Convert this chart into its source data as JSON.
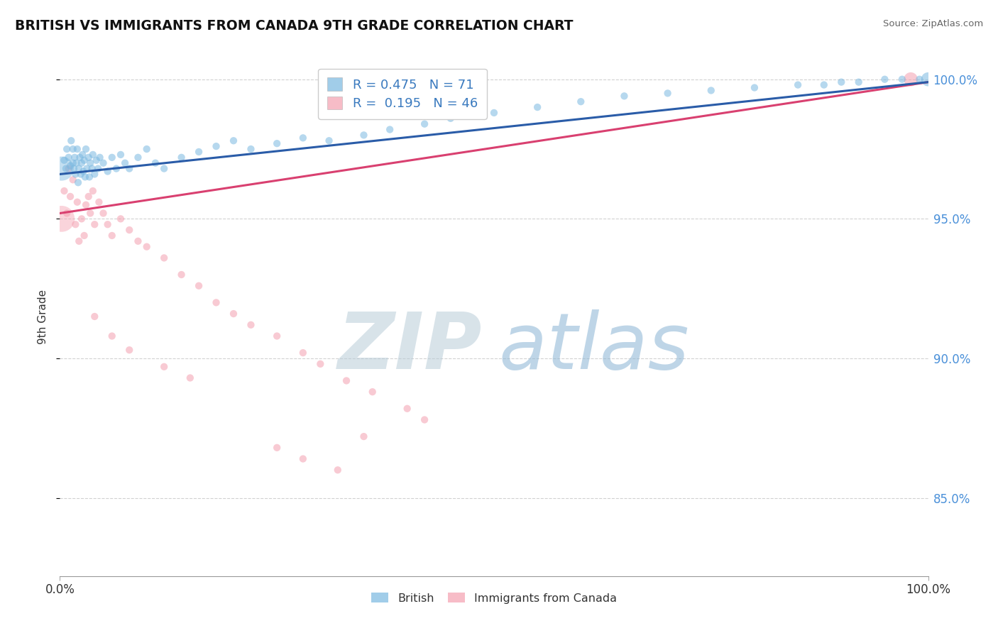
{
  "title": "BRITISH VS IMMIGRANTS FROM CANADA 9TH GRADE CORRELATION CHART",
  "source_text": "Source: ZipAtlas.com",
  "ylabel": "9th Grade",
  "xlim": [
    0.0,
    1.0
  ],
  "ylim": [
    0.822,
    1.008
  ],
  "yticks": [
    0.85,
    0.9,
    0.95,
    1.0
  ],
  "ytick_labels": [
    "85.0%",
    "90.0%",
    "95.0%",
    "100.0%"
  ],
  "british_color": "#7ab8e0",
  "immigrant_color": "#f4a0b0",
  "british_line_color": "#2a5ca8",
  "immigrant_line_color": "#d94070",
  "grid_color": "#cccccc",
  "watermark_zip": "ZIP",
  "watermark_atlas": "atlas",
  "legend_line1": "R = 0.475   N = 71",
  "legend_line2": "R =  0.195   N = 46",
  "british_scatter_x": [
    0.005,
    0.007,
    0.008,
    0.01,
    0.012,
    0.013,
    0.015,
    0.015,
    0.016,
    0.017,
    0.018,
    0.019,
    0.02,
    0.021,
    0.022,
    0.023,
    0.024,
    0.025,
    0.026,
    0.027,
    0.028,
    0.029,
    0.03,
    0.031,
    0.033,
    0.034,
    0.035,
    0.037,
    0.038,
    0.04,
    0.042,
    0.044,
    0.046,
    0.05,
    0.055,
    0.06,
    0.065,
    0.07,
    0.075,
    0.08,
    0.09,
    0.1,
    0.11,
    0.12,
    0.14,
    0.16,
    0.18,
    0.2,
    0.22,
    0.25,
    0.28,
    0.31,
    0.35,
    0.38,
    0.42,
    0.45,
    0.5,
    0.55,
    0.6,
    0.65,
    0.7,
    0.75,
    0.8,
    0.85,
    0.88,
    0.9,
    0.92,
    0.95,
    0.97,
    0.99,
    1.0
  ],
  "british_scatter_y": [
    0.971,
    0.968,
    0.975,
    0.972,
    0.969,
    0.978,
    0.97,
    0.975,
    0.968,
    0.972,
    0.966,
    0.97,
    0.975,
    0.963,
    0.968,
    0.972,
    0.966,
    0.97,
    0.973,
    0.967,
    0.971,
    0.965,
    0.975,
    0.968,
    0.972,
    0.965,
    0.97,
    0.968,
    0.973,
    0.966,
    0.971,
    0.968,
    0.972,
    0.97,
    0.967,
    0.972,
    0.968,
    0.973,
    0.97,
    0.968,
    0.972,
    0.975,
    0.97,
    0.968,
    0.972,
    0.974,
    0.976,
    0.978,
    0.975,
    0.977,
    0.979,
    0.978,
    0.98,
    0.982,
    0.984,
    0.986,
    0.988,
    0.99,
    0.992,
    0.994,
    0.995,
    0.996,
    0.997,
    0.998,
    0.998,
    0.999,
    0.999,
    1.0,
    1.0,
    1.0,
    1.0
  ],
  "british_scatter_s": [
    55,
    55,
    55,
    55,
    55,
    55,
    55,
    55,
    55,
    55,
    55,
    55,
    55,
    55,
    55,
    55,
    55,
    55,
    55,
    55,
    55,
    55,
    55,
    55,
    55,
    55,
    55,
    55,
    55,
    55,
    55,
    55,
    55,
    55,
    55,
    55,
    55,
    55,
    55,
    55,
    55,
    55,
    55,
    55,
    55,
    55,
    55,
    55,
    55,
    55,
    55,
    55,
    55,
    55,
    55,
    55,
    55,
    55,
    55,
    55,
    55,
    55,
    55,
    55,
    55,
    55,
    55,
    55,
    55,
    55,
    200
  ],
  "british_big_x": [
    0.002
  ],
  "british_big_y": [
    0.968
  ],
  "british_big_s": [
    600
  ],
  "immigrant_scatter_x": [
    0.005,
    0.008,
    0.01,
    0.012,
    0.015,
    0.018,
    0.02,
    0.022,
    0.025,
    0.028,
    0.03,
    0.033,
    0.035,
    0.038,
    0.04,
    0.045,
    0.05,
    0.055,
    0.06,
    0.07,
    0.08,
    0.09,
    0.1,
    0.12,
    0.14,
    0.16,
    0.18,
    0.2,
    0.22,
    0.25,
    0.28,
    0.3,
    0.33,
    0.36,
    0.4,
    0.42,
    0.35,
    0.25,
    0.28,
    0.32,
    0.15,
    0.12,
    0.08,
    0.06,
    0.04,
    0.98
  ],
  "immigrant_scatter_y": [
    0.96,
    0.952,
    0.968,
    0.958,
    0.964,
    0.948,
    0.956,
    0.942,
    0.95,
    0.944,
    0.955,
    0.958,
    0.952,
    0.96,
    0.948,
    0.956,
    0.952,
    0.948,
    0.944,
    0.95,
    0.946,
    0.942,
    0.94,
    0.936,
    0.93,
    0.926,
    0.92,
    0.916,
    0.912,
    0.908,
    0.902,
    0.898,
    0.892,
    0.888,
    0.882,
    0.878,
    0.872,
    0.868,
    0.864,
    0.86,
    0.893,
    0.897,
    0.903,
    0.908,
    0.915,
    1.0
  ],
  "immigrant_scatter_s": [
    55,
    55,
    55,
    55,
    55,
    55,
    55,
    55,
    55,
    55,
    55,
    55,
    55,
    55,
    55,
    55,
    55,
    55,
    55,
    55,
    55,
    55,
    55,
    55,
    55,
    55,
    55,
    55,
    55,
    55,
    55,
    55,
    55,
    55,
    55,
    55,
    55,
    55,
    55,
    55,
    55,
    55,
    55,
    55,
    55,
    200
  ],
  "immigrant_big_x": [
    0.002
  ],
  "immigrant_big_y": [
    0.95
  ],
  "immigrant_big_s": [
    700
  ]
}
